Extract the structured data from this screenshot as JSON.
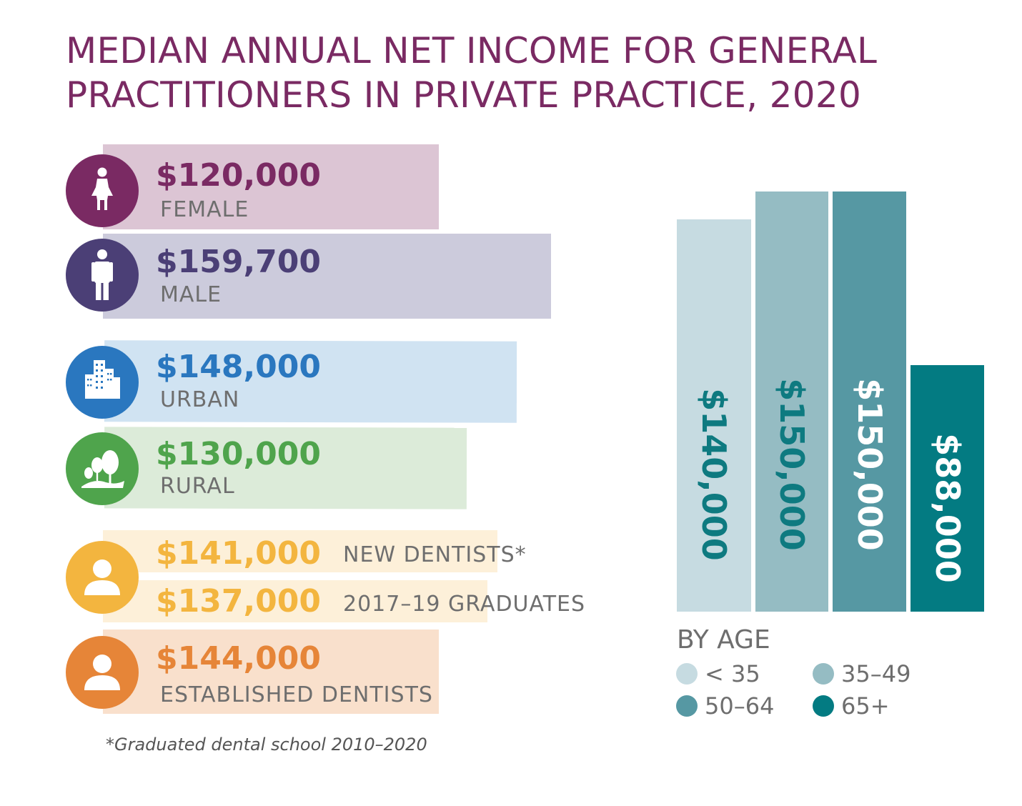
{
  "title_lines": [
    "MEDIAN ANNUAL NET INCOME FOR GENERAL",
    "PRACTITIONERS IN PRIVATE PRACTICE, 2020"
  ],
  "footnote": "*Graduated dental school 2010–2020",
  "chart_data": [
    {
      "type": "bar",
      "orientation": "horizontal",
      "categories": [
        "FEMALE",
        "MALE",
        "URBAN",
        "RURAL",
        "NEW DENTISTS*",
        "2017–19 GRADUATES",
        "ESTABLISHED DENTISTS"
      ],
      "values": [
        120000,
        159700,
        148000,
        130000,
        141000,
        137000,
        144000
      ],
      "value_labels": [
        "$120,000",
        "$159,700",
        "$148,000",
        "$130,000",
        "$141,000",
        "$137,000",
        "$144,000"
      ],
      "rows": [
        {
          "value": "$120,000",
          "label": "FEMALE",
          "icon": "female-icon",
          "color": "#7a2a63",
          "bar_color": "#dcc5d4"
        },
        {
          "value": "$159,700",
          "label": "MALE",
          "icon": "male-icon",
          "color": "#4b3f76",
          "bar_color": "#cccbdc"
        },
        {
          "value": "$148,000",
          "label": "URBAN",
          "icon": "city-buildings-icon",
          "color": "#2a77bf",
          "bar_color": "#d0e3f2"
        },
        {
          "value": "$130,000",
          "label": "RURAL",
          "icon": "trees-icon",
          "color": "#4fa44c",
          "bar_color": "#dcebd9"
        },
        {
          "value": "$141,000",
          "label": "NEW DENTISTS*",
          "icon": "person-icon",
          "color": "#f3b53f",
          "bar_color": "#fdf0d9"
        },
        {
          "value": "$137,000",
          "label": "2017–19 GRADUATES",
          "icon": "",
          "color": "#f3b53f",
          "bar_color": "#fdf0d9"
        },
        {
          "value": "$144,000",
          "label": "ESTABLISHED DENTISTS",
          "icon": "person-icon",
          "color": "#e68538",
          "bar_color": "#f9e0cc"
        }
      ]
    },
    {
      "type": "bar",
      "title": "BY AGE",
      "categories": [
        "< 35",
        "35–49",
        "50–64",
        "65+"
      ],
      "values": [
        140000,
        150000,
        150000,
        88000
      ],
      "value_labels": [
        "$140,000",
        "$150,000",
        "$150,000",
        "$88,000"
      ],
      "colors": [
        "#c6dbe1",
        "#95bcc3",
        "#5698a3",
        "#037b82"
      ],
      "label_colors": [
        "#0e7a80",
        "#0e7a80",
        "#ffffff",
        "#ffffff"
      ],
      "legend": "bottom"
    }
  ]
}
